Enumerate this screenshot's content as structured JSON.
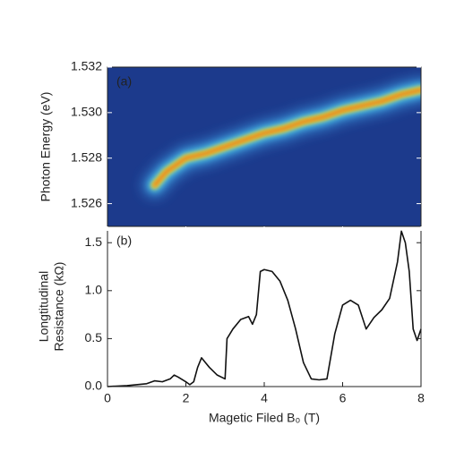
{
  "chart_data": [
    {
      "type": "heatmap",
      "annotation": "(a)",
      "ylabel": "Photon Energy (eV)",
      "x": [
        1.2,
        1.5,
        2.0,
        2.5,
        3.0,
        3.5,
        4.0,
        4.5,
        5.0,
        5.5,
        6.0,
        6.5,
        7.0,
        7.5,
        8.0
      ],
      "values": [
        1.5268,
        1.5274,
        1.528,
        1.5282,
        1.5285,
        1.5288,
        1.5291,
        1.5293,
        1.5296,
        1.5298,
        1.5301,
        1.5303,
        1.5305,
        1.5308,
        1.531
      ],
      "xlim": [
        0,
        8
      ],
      "ylim": [
        1.525,
        1.532
      ],
      "yticks": [
        1.526,
        1.528,
        {
          "value": 1.53,
          "label": "1.530"
        },
        1.532
      ]
    },
    {
      "type": "line",
      "annotation": "(b)",
      "ylabel": [
        "Longtitudinal",
        "Resistance (kΩ)"
      ],
      "xlabel": "Magetic Filed B₀ (T)",
      "color": "#111111",
      "x": [
        0,
        0.5,
        1.0,
        1.2,
        1.4,
        1.6,
        1.7,
        1.8,
        2.0,
        2.1,
        2.2,
        2.3,
        2.4,
        2.5,
        2.6,
        2.8,
        3.0,
        3.05,
        3.2,
        3.4,
        3.6,
        3.7,
        3.8,
        3.9,
        4.0,
        4.2,
        4.4,
        4.6,
        4.8,
        5.0,
        5.2,
        5.4,
        5.6,
        5.8,
        6.0,
        6.2,
        6.4,
        6.6,
        6.8,
        7.0,
        7.2,
        7.4,
        7.5,
        7.6,
        7.7,
        7.8,
        7.9,
        8.0
      ],
      "values": [
        0.0,
        0.01,
        0.03,
        0.06,
        0.05,
        0.08,
        0.12,
        0.1,
        0.05,
        0.02,
        0.05,
        0.2,
        0.3,
        0.25,
        0.2,
        0.12,
        0.08,
        0.5,
        0.6,
        0.7,
        0.73,
        0.65,
        0.75,
        1.2,
        1.22,
        1.2,
        1.1,
        0.9,
        0.6,
        0.25,
        0.08,
        0.07,
        0.08,
        0.55,
        0.85,
        0.9,
        0.85,
        0.6,
        0.72,
        0.8,
        0.92,
        1.3,
        1.62,
        1.5,
        1.2,
        0.6,
        0.48,
        0.6
      ],
      "xlim": [
        0,
        8
      ],
      "xticks": [
        0,
        2,
        4,
        6,
        8
      ],
      "ylim": [
        0,
        1.67
      ],
      "yticks": [
        {
          "value": 0,
          "label": "0.0"
        },
        0.5,
        {
          "value": 1,
          "label": "1.0"
        },
        1.5
      ]
    }
  ]
}
